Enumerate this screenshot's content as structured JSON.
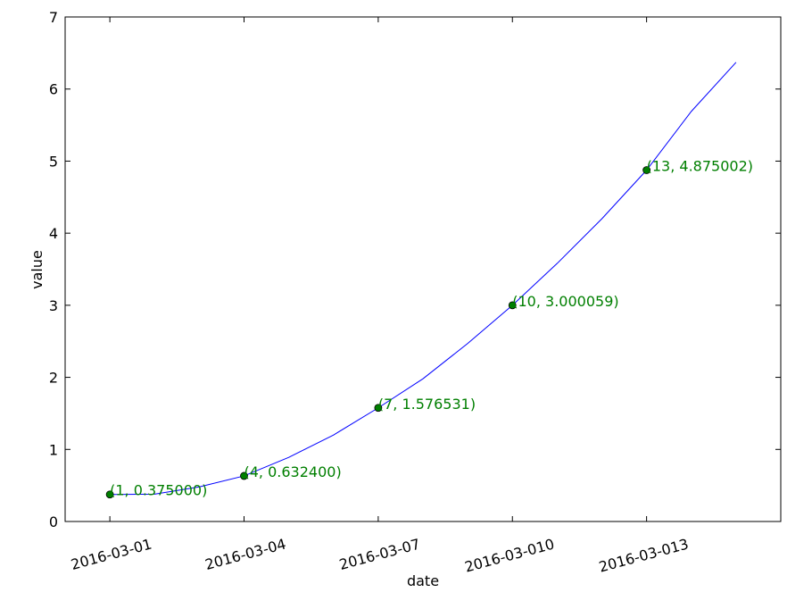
{
  "chart_data": {
    "type": "line",
    "xlabel": "date",
    "ylabel": "value",
    "series": [
      {
        "color": "#0000ff",
        "x": [
          1,
          2,
          3,
          4,
          5,
          6,
          7,
          8,
          9,
          10,
          11,
          12,
          13,
          14,
          15
        ],
        "values": [
          0.375,
          0.38,
          0.48,
          0.6324,
          0.89,
          1.2,
          1.576531,
          1.98,
          2.47,
          3.000059,
          3.58,
          4.2,
          4.875002,
          5.69,
          6.37
        ]
      },
      {
        "color": "#007f00",
        "marker": "o",
        "x": [
          1,
          4,
          7,
          10,
          13
        ],
        "values": [
          0.375,
          0.6324,
          1.576531,
          3.000059,
          4.875002
        ],
        "value_labels": [
          "(1, 0.375000)",
          "(4, 0.632400)",
          "(7, 1.576531)",
          "(10, 3.000059)",
          "(13, 4.875002)"
        ]
      }
    ],
    "xlim": [
      0,
      16
    ],
    "xticks": [
      {
        "value": 1,
        "label": "2016-03-01"
      },
      {
        "value": 4,
        "label": "2016-03-04"
      },
      {
        "value": 7,
        "label": "2016-03-07"
      },
      {
        "value": 10,
        "label": "2016-03-010"
      },
      {
        "value": 13,
        "label": "2016-03-013"
      }
    ],
    "ylim": [
      0,
      7
    ],
    "yticks": [
      0,
      1,
      2,
      3,
      4,
      5,
      6,
      7
    ],
    "grid": false
  }
}
